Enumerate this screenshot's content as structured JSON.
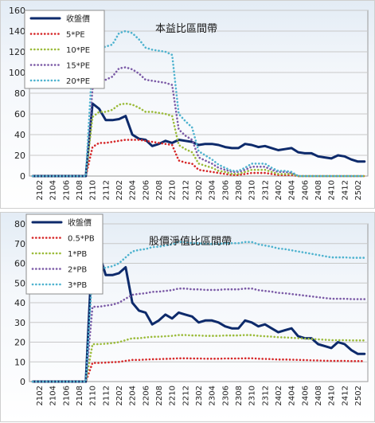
{
  "chart_data": [
    {
      "type": "line",
      "title": "本益比區間帶",
      "xlabel": "",
      "ylabel": "",
      "ylim": [
        0,
        160
      ],
      "yticks": [
        0,
        20,
        40,
        60,
        80,
        100,
        120,
        140,
        160
      ],
      "x": [
        "2101",
        "2102",
        "2103",
        "2104",
        "2105",
        "2106",
        "2107",
        "2108",
        "2109",
        "2110",
        "2111",
        "2112",
        "2201",
        "2202",
        "2203",
        "2204",
        "2205",
        "2206",
        "2207",
        "2208",
        "2209",
        "2210",
        "2211",
        "2212",
        "2301",
        "2302",
        "2303",
        "2304",
        "2305",
        "2306",
        "2307",
        "2308",
        "2309",
        "2310",
        "2311",
        "2312",
        "2401",
        "2402",
        "2403",
        "2404",
        "2405",
        "2406",
        "2407",
        "2408",
        "2409",
        "2410",
        "2411",
        "2412",
        "2501",
        "2502",
        "2503"
      ],
      "x_tick_labels": [
        "2102",
        "2104",
        "2106",
        "2108",
        "2110",
        "2112",
        "2202",
        "2204",
        "2206",
        "2208",
        "2210",
        "2212",
        "2302",
        "2304",
        "2306",
        "2308",
        "2310",
        "2312",
        "2402",
        "2404",
        "2406",
        "2408",
        "2410",
        "2412",
        "2502"
      ],
      "legend_position": "top-left",
      "grid": true,
      "series": [
        {
          "name": "收盤價",
          "color": "#0d2a6b",
          "style": "solid",
          "values": [
            0,
            0,
            0,
            0,
            0,
            0,
            0,
            0,
            0,
            70,
            65,
            54,
            54,
            55,
            58,
            40,
            36,
            35,
            29,
            31,
            34,
            32,
            35,
            34,
            33,
            30,
            31,
            31,
            30,
            28,
            27,
            27,
            31,
            30,
            28,
            29,
            27,
            25,
            26,
            27,
            23,
            22,
            22,
            19,
            18,
            17,
            20,
            19,
            16,
            14,
            14
          ]
        },
        {
          "name": "5*PE",
          "color": "#d62728",
          "style": "dotted",
          "values": [
            0,
            0,
            0,
            0,
            0,
            0,
            0,
            0,
            0,
            28,
            32,
            32,
            33,
            34,
            35,
            35,
            35,
            34,
            33,
            32,
            31,
            30,
            15,
            13,
            12,
            6,
            5,
            4,
            3,
            2,
            1,
            1,
            2,
            3,
            3,
            3,
            2,
            1,
            1,
            1,
            0,
            0,
            0,
            0,
            0,
            0,
            0,
            0,
            0,
            0,
            0
          ]
        },
        {
          "name": "10*PE",
          "color": "#9bbb3a",
          "style": "dotted",
          "values": [
            0,
            0,
            0,
            0,
            0,
            0,
            0,
            0,
            0,
            57,
            62,
            62,
            64,
            69,
            70,
            69,
            66,
            62,
            62,
            61,
            60,
            58,
            30,
            26,
            23,
            12,
            10,
            8,
            5,
            4,
            2,
            2,
            4,
            6,
            6,
            6,
            4,
            2,
            2,
            2,
            0,
            0,
            0,
            0,
            0,
            0,
            0,
            0,
            0,
            0,
            0
          ]
        },
        {
          "name": "15*PE",
          "color": "#7b5aa6",
          "style": "dotted",
          "values": [
            0,
            0,
            0,
            0,
            0,
            0,
            0,
            0,
            0,
            84,
            92,
            93,
            96,
            104,
            105,
            103,
            99,
            93,
            92,
            91,
            90,
            88,
            45,
            39,
            35,
            18,
            15,
            12,
            8,
            6,
            4,
            4,
            6,
            9,
            9,
            9,
            6,
            4,
            4,
            3,
            0,
            0,
            0,
            0,
            0,
            0,
            0,
            0,
            0,
            0,
            0
          ]
        },
        {
          "name": "20*PE",
          "color": "#4fb3cf",
          "style": "dotted",
          "values": [
            0,
            0,
            0,
            0,
            0,
            0,
            0,
            0,
            0,
            113,
            123,
            125,
            127,
            138,
            140,
            138,
            132,
            124,
            122,
            121,
            120,
            117,
            60,
            53,
            47,
            24,
            20,
            16,
            11,
            8,
            5,
            5,
            8,
            12,
            12,
            12,
            8,
            5,
            5,
            4,
            0,
            0,
            0,
            0,
            0,
            0,
            0,
            0,
            0,
            0,
            0
          ]
        }
      ]
    },
    {
      "type": "line",
      "title": "股價淨值比區間帶",
      "xlabel": "",
      "ylabel": "",
      "ylim": [
        0,
        80
      ],
      "yticks": [
        0,
        10,
        20,
        30,
        40,
        50,
        60,
        70,
        80
      ],
      "x": [
        "2101",
        "2102",
        "2103",
        "2104",
        "2105",
        "2106",
        "2107",
        "2108",
        "2109",
        "2110",
        "2111",
        "2112",
        "2201",
        "2202",
        "2203",
        "2204",
        "2205",
        "2206",
        "2207",
        "2208",
        "2209",
        "2210",
        "2211",
        "2212",
        "2301",
        "2302",
        "2303",
        "2304",
        "2305",
        "2306",
        "2307",
        "2308",
        "2309",
        "2310",
        "2311",
        "2312",
        "2401",
        "2402",
        "2403",
        "2404",
        "2405",
        "2406",
        "2407",
        "2408",
        "2409",
        "2410",
        "2411",
        "2412",
        "2501",
        "2502",
        "2503"
      ],
      "x_tick_labels": [
        "2102",
        "2104",
        "2106",
        "2108",
        "2110",
        "2112",
        "2202",
        "2204",
        "2206",
        "2208",
        "2210",
        "2212",
        "2302",
        "2304",
        "2306",
        "2308",
        "2310",
        "2312",
        "2402",
        "2404",
        "2406",
        "2408",
        "2410",
        "2412",
        "2502"
      ],
      "legend_position": "top-left",
      "grid": true,
      "series": [
        {
          "name": "收盤價",
          "color": "#0d2a6b",
          "style": "solid",
          "values": [
            0,
            0,
            0,
            0,
            0,
            0,
            0,
            0,
            0,
            70,
            65,
            54,
            54,
            55,
            58,
            40,
            36,
            35,
            29,
            31,
            34,
            32,
            35,
            34,
            33,
            30,
            31,
            31,
            30,
            28,
            27,
            27,
            31,
            30,
            28,
            29,
            27,
            25,
            26,
            27,
            23,
            22,
            22,
            19,
            18,
            17,
            20,
            19,
            16,
            14,
            14
          ]
        },
        {
          "name": "0.5*PB",
          "color": "#d62728",
          "style": "dotted",
          "values": [
            0,
            0,
            0,
            0,
            0,
            0,
            0,
            0,
            0,
            9.5,
            9.5,
            9.6,
            9.8,
            10,
            10.5,
            11,
            11,
            11.2,
            11.3,
            11.4,
            11.5,
            11.6,
            11.8,
            11.8,
            11.7,
            11.7,
            11.6,
            11.6,
            11.6,
            11.7,
            11.7,
            11.7,
            11.8,
            11.8,
            11.6,
            11.5,
            11.4,
            11.2,
            11.2,
            11.1,
            11,
            10.9,
            10.8,
            10.7,
            10.6,
            10.5,
            10.5,
            10.5,
            10.4,
            10.4,
            10.4
          ]
        },
        {
          "name": "1*PB",
          "color": "#9bbb3a",
          "style": "dotted",
          "values": [
            0,
            0,
            0,
            0,
            0,
            0,
            0,
            0,
            0,
            19,
            19,
            19.2,
            19.5,
            20,
            21,
            22,
            22,
            22.4,
            22.7,
            22.8,
            23,
            23.2,
            23.6,
            23.6,
            23.4,
            23.4,
            23.2,
            23.2,
            23.2,
            23.4,
            23.4,
            23.4,
            23.6,
            23.6,
            23.2,
            23,
            22.8,
            22.5,
            22.4,
            22.2,
            22,
            21.8,
            21.6,
            21.4,
            21.2,
            21,
            21,
            21,
            20.9,
            20.9,
            20.9
          ]
        },
        {
          "name": "2*PB",
          "color": "#7b5aa6",
          "style": "dotted",
          "values": [
            0,
            0,
            0,
            0,
            0,
            0,
            0,
            0,
            0,
            38,
            38,
            38.5,
            39,
            40,
            42,
            44,
            44.5,
            44.8,
            45.5,
            45.6,
            46,
            46.4,
            47.2,
            47.2,
            46.8,
            46.8,
            46.5,
            46.5,
            46.5,
            46.8,
            46.8,
            46.8,
            47.2,
            47.2,
            46.4,
            46,
            45.6,
            45,
            44.8,
            44.4,
            44,
            43.6,
            43.2,
            42.8,
            42.4,
            42,
            42,
            42,
            41.8,
            41.8,
            41.8
          ]
        },
        {
          "name": "3*PB",
          "color": "#4fb3cf",
          "style": "dotted",
          "values": [
            0,
            0,
            0,
            0,
            0,
            0,
            0,
            0,
            0,
            57,
            57,
            57.8,
            58.5,
            60,
            63,
            66,
            66.8,
            67.2,
            68.2,
            68.4,
            69,
            69.6,
            70.8,
            70.8,
            70.2,
            70.2,
            69.8,
            69.8,
            69.8,
            70.2,
            70.2,
            70.2,
            70.8,
            70.8,
            69.6,
            69,
            68.4,
            67.5,
            67.2,
            66.6,
            66,
            65.4,
            64.8,
            64.2,
            63.6,
            63,
            63,
            63,
            62.8,
            62.8,
            62.8
          ]
        }
      ]
    }
  ]
}
